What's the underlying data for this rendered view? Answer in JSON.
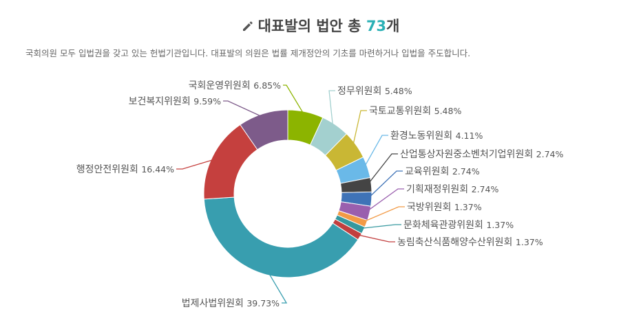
{
  "header": {
    "title_prefix": "대표발의 법안 총 ",
    "title_count": "73",
    "title_suffix": "개",
    "description": "국회의원 모두 입법권을 갖고 있는 헌법기관입니다. 대표발의 의원은 법률 제개정안의 기초를 마련하거나 입법을 주도합니다."
  },
  "icons": {
    "title_icon": "pencil-icon"
  },
  "chart_data": {
    "type": "pie",
    "donut": true,
    "unit": "%",
    "slices": [
      {
        "name": "국회운영위원회",
        "value": 6.85,
        "color": "#8cb400"
      },
      {
        "name": "정무위원회",
        "value": 5.48,
        "color": "#a3d0cf"
      },
      {
        "name": "국토교통위원회",
        "value": 5.48,
        "color": "#c9b734"
      },
      {
        "name": "환경노동위원회",
        "value": 4.11,
        "color": "#6ab9e8"
      },
      {
        "name": "산업통상자원중소벤처기업위원회",
        "value": 2.74,
        "color": "#444444"
      },
      {
        "name": "교육위원회",
        "value": 2.74,
        "color": "#3f73b7"
      },
      {
        "name": "기획재정위원회",
        "value": 2.74,
        "color": "#9a5fae"
      },
      {
        "name": "국방위원회",
        "value": 1.37,
        "color": "#f29a46"
      },
      {
        "name": "문화체육관광위원회",
        "value": 1.37,
        "color": "#35989f"
      },
      {
        "name": "농림축산식품해양수산위원회",
        "value": 1.37,
        "color": "#c23f3f"
      },
      {
        "name": "법제사법위원회",
        "value": 39.73,
        "color": "#389eaf"
      },
      {
        "name": "행정안전위원회",
        "value": 16.44,
        "color": "#c5403e"
      },
      {
        "name": "보건복지위원회",
        "value": 9.59,
        "color": "#7d5b8a"
      }
    ]
  }
}
